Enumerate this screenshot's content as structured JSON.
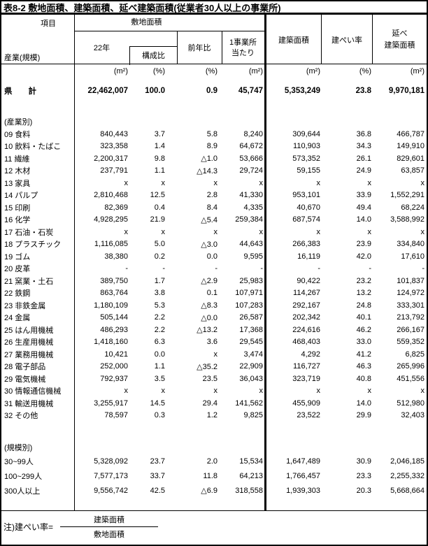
{
  "title": "表8-2 敷地面積、建築面積、延べ建築面積(従業者30人以上の事業所)",
  "header": {
    "item_label": "項目",
    "row_axis_label": "産業(規模)",
    "site_area_group": "敷地面積",
    "col_year": "22年",
    "col_composition": "構成比",
    "col_yoy": "前年比",
    "col_per_line1": "1事業所",
    "col_per_line2": "当たり",
    "col_building_area": "建築面積",
    "col_coverage": "建ぺい率",
    "col_total_floor_line1": "延べ",
    "col_total_floor_line2": "建築面積",
    "units": [
      "(m²)",
      "(%)",
      "(%)",
      "(m²)",
      "(m²)",
      "(%)",
      "(m²)"
    ]
  },
  "total_row": {
    "label": "県　　計",
    "values": [
      "22,462,007",
      "100.0",
      "0.9",
      "45,747",
      "5,353,249",
      "23.8",
      "9,970,181"
    ]
  },
  "sections": [
    {
      "heading": "(産業別)",
      "rows": [
        {
          "label": "09 食料",
          "values": [
            "840,443",
            "3.7",
            "5.8",
            "8,240",
            "309,644",
            "36.8",
            "466,787"
          ]
        },
        {
          "label": "10 飲料・たばこ",
          "values": [
            "323,358",
            "1.4",
            "8.9",
            "64,672",
            "110,903",
            "34.3",
            "149,910"
          ]
        },
        {
          "label": "11 繊維",
          "values": [
            "2,200,317",
            "9.8",
            "△1.0",
            "53,666",
            "573,352",
            "26.1",
            "829,601"
          ]
        },
        {
          "label": "12 木材",
          "values": [
            "237,791",
            "1.1",
            "△14.3",
            "29,724",
            "59,155",
            "24.9",
            "63,857"
          ]
        },
        {
          "label": "13 家具",
          "values": [
            "x",
            "x",
            "x",
            "x",
            "x",
            "x",
            "x"
          ]
        },
        {
          "label": "14 パルプ",
          "values": [
            "2,810,468",
            "12.5",
            "2.8",
            "41,330",
            "953,101",
            "33.9",
            "1,552,291"
          ]
        },
        {
          "label": "15 印刷",
          "values": [
            "82,369",
            "0.4",
            "8.4",
            "4,335",
            "40,670",
            "49.4",
            "68,224"
          ]
        },
        {
          "label": "16 化学",
          "values": [
            "4,928,295",
            "21.9",
            "△5.4",
            "259,384",
            "687,574",
            "14.0",
            "3,588,992"
          ]
        },
        {
          "label": "17 石油・石炭",
          "values": [
            "x",
            "x",
            "x",
            "x",
            "x",
            "x",
            "x"
          ]
        },
        {
          "label": "18 プラスチック",
          "values": [
            "1,116,085",
            "5.0",
            "△3.0",
            "44,643",
            "266,383",
            "23.9",
            "334,840"
          ]
        },
        {
          "label": "19 ゴム",
          "values": [
            "38,380",
            "0.2",
            "0.0",
            "9,595",
            "16,119",
            "42.0",
            "17,610"
          ]
        },
        {
          "label": "20 皮革",
          "values": [
            "-",
            "-",
            "-",
            "-",
            "-",
            "-",
            "-"
          ]
        },
        {
          "label": "21 窯業・土石",
          "values": [
            "389,750",
            "1.7",
            "△2.9",
            "25,983",
            "90,422",
            "23.2",
            "101,837"
          ]
        },
        {
          "label": "22 鉄鋼",
          "values": [
            "863,764",
            "3.8",
            "0.1",
            "107,971",
            "114,267",
            "13.2",
            "124,972"
          ]
        },
        {
          "label": "23 非鉄金属",
          "values": [
            "1,180,109",
            "5.3",
            "△8.3",
            "107,283",
            "292,167",
            "24.8",
            "333,301"
          ]
        },
        {
          "label": "24 金属",
          "values": [
            "505,144",
            "2.2",
            "△0.0",
            "26,587",
            "202,342",
            "40.1",
            "213,792"
          ]
        },
        {
          "label": "25 はん用機械",
          "values": [
            "486,293",
            "2.2",
            "△13.2",
            "17,368",
            "224,616",
            "46.2",
            "266,167"
          ]
        },
        {
          "label": "26 生産用機械",
          "values": [
            "1,418,160",
            "6.3",
            "3.6",
            "29,545",
            "468,403",
            "33.0",
            "559,352"
          ]
        },
        {
          "label": "27 業務用機械",
          "values": [
            "10,421",
            "0.0",
            "x",
            "3,474",
            "4,292",
            "41.2",
            "6,825"
          ]
        },
        {
          "label": "28 電子部品",
          "values": [
            "252,000",
            "1.1",
            "△35.2",
            "22,909",
            "116,727",
            "46.3",
            "265,996"
          ]
        },
        {
          "label": "29 電気機械",
          "values": [
            "792,937",
            "3.5",
            "23.5",
            "36,043",
            "323,719",
            "40.8",
            "451,556"
          ]
        },
        {
          "label": "30 情報通信機械",
          "values": [
            "x",
            "x",
            "x",
            "x",
            "x",
            "x",
            "x"
          ]
        },
        {
          "label": "31 輸送用機械",
          "values": [
            "3,255,917",
            "14.5",
            "29.4",
            "141,562",
            "455,909",
            "14.0",
            "512,980"
          ]
        },
        {
          "label": "32 その他",
          "values": [
            "78,597",
            "0.3",
            "1.2",
            "9,825",
            "23,522",
            "29.9",
            "32,403"
          ]
        }
      ]
    },
    {
      "heading": "(規模別)",
      "rows": [
        {
          "label": "30~99人",
          "values": [
            "5,328,092",
            "23.7",
            "2.0",
            "15,534",
            "1,647,489",
            "30.9",
            "2,046,185"
          ]
        },
        {
          "label": "100~299人",
          "values": [
            "7,577,173",
            "33.7",
            "11.8",
            "64,213",
            "1,766,457",
            "23.3",
            "2,255,332"
          ]
        },
        {
          "label": "300人以上",
          "values": [
            "9,556,742",
            "42.5",
            "△6.9",
            "318,558",
            "1,939,303",
            "20.3",
            "5,668,664"
          ]
        }
      ]
    }
  ],
  "note": {
    "prefix": "注)建ぺい率=",
    "numerator": "建築面積",
    "denominator": "敷地面積"
  },
  "colors": {
    "border": "#000000",
    "background": "#ffffff",
    "text": "#000000"
  }
}
